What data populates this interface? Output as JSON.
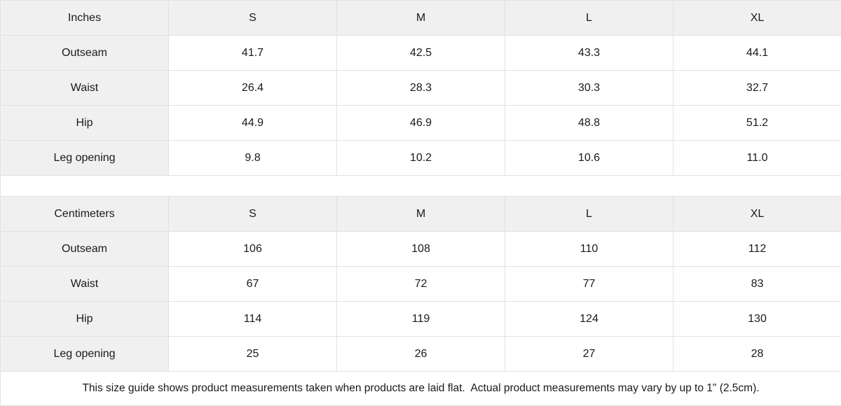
{
  "colors": {
    "header_bg": "#f0f0f0",
    "border": "#e1e1e1",
    "text": "#1a1a1a"
  },
  "size_guide": {
    "tables": [
      {
        "header": [
          "Inches",
          "S",
          "M",
          "L",
          "XL"
        ],
        "rows": [
          {
            "label": "Outseam",
            "values": [
              "41.7",
              "42.5",
              "43.3",
              "44.1"
            ]
          },
          {
            "label": "Waist",
            "values": [
              "26.4",
              "28.3",
              "30.3",
              "32.7"
            ]
          },
          {
            "label": "Hip",
            "values": [
              "44.9",
              "46.9",
              "48.8",
              "51.2"
            ]
          },
          {
            "label": "Leg opening",
            "values": [
              "9.8",
              "10.2",
              "10.6",
              "11.0"
            ]
          }
        ]
      },
      {
        "header": [
          "Centimeters",
          "S",
          "M",
          "L",
          "XL"
        ],
        "rows": [
          {
            "label": "Outseam",
            "values": [
              "106",
              "108",
              "110",
              "112"
            ]
          },
          {
            "label": "Waist",
            "values": [
              "67",
              "72",
              "77",
              "83"
            ]
          },
          {
            "label": "Hip",
            "values": [
              "114",
              "119",
              "124",
              "130"
            ]
          },
          {
            "label": "Leg opening",
            "values": [
              "25",
              "26",
              "27",
              "28"
            ]
          }
        ]
      }
    ],
    "footnote": "This size guide shows product measurements taken when products are laid flat.  Actual product measurements may vary by up to 1\" (2.5cm)."
  }
}
